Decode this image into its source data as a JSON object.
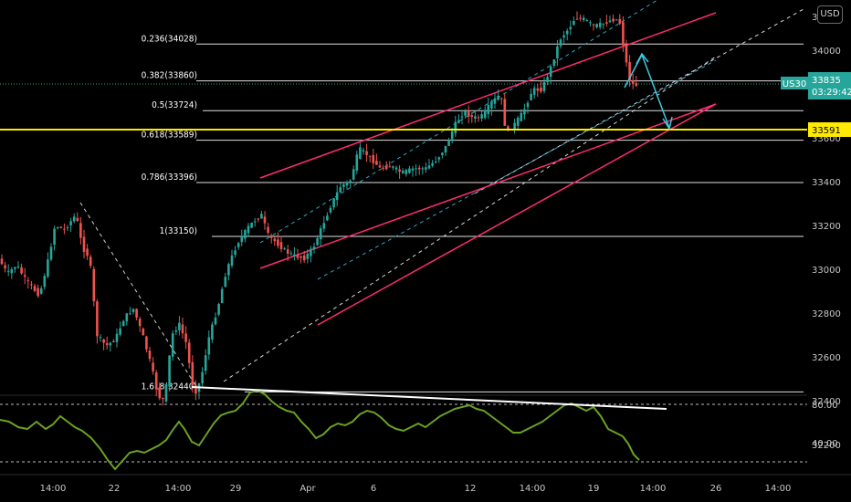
{
  "chart_data": {
    "type": "candlestick",
    "symbol": "US30",
    "currency": "USD",
    "last_price": "33835",
    "countdown": "03:29:42",
    "highlight_price": "33591",
    "price_axis_ticks": [
      "34000",
      "33800",
      "33600",
      "33400",
      "33200",
      "33000",
      "32800",
      "32600",
      "32400",
      "32200"
    ],
    "price_axis_partial": "34",
    "oscillator_ticks": [
      "80.00",
      "40.00"
    ],
    "x_axis_ticks": [
      "14:00",
      "22",
      "14:00",
      "29",
      "Apr",
      "6",
      "12",
      "14:00",
      "19",
      "14:00",
      "26",
      "14:00"
    ],
    "fibonacci_levels": [
      {
        "label": "0.236(34028)",
        "price": 34028
      },
      {
        "label": "0.382(33860)",
        "price": 33860
      },
      {
        "label": "0.5(33724)",
        "price": 33724
      },
      {
        "label": "0.618(33589)",
        "price": 33589
      },
      {
        "label": "0.786(33396)",
        "price": 33396
      },
      {
        "label": "1(33150)",
        "price": 33150
      },
      {
        "label": "1.618(32440)",
        "price": 32440
      }
    ],
    "colors": {
      "up": "#26a69a",
      "down": "#ef5350",
      "channel": "#ff2d6f",
      "highlight": "#ffea00",
      "oscillator": "#6aa121",
      "dashed_channel": "#2aa8c9",
      "arrow": "#40c8e0"
    }
  }
}
